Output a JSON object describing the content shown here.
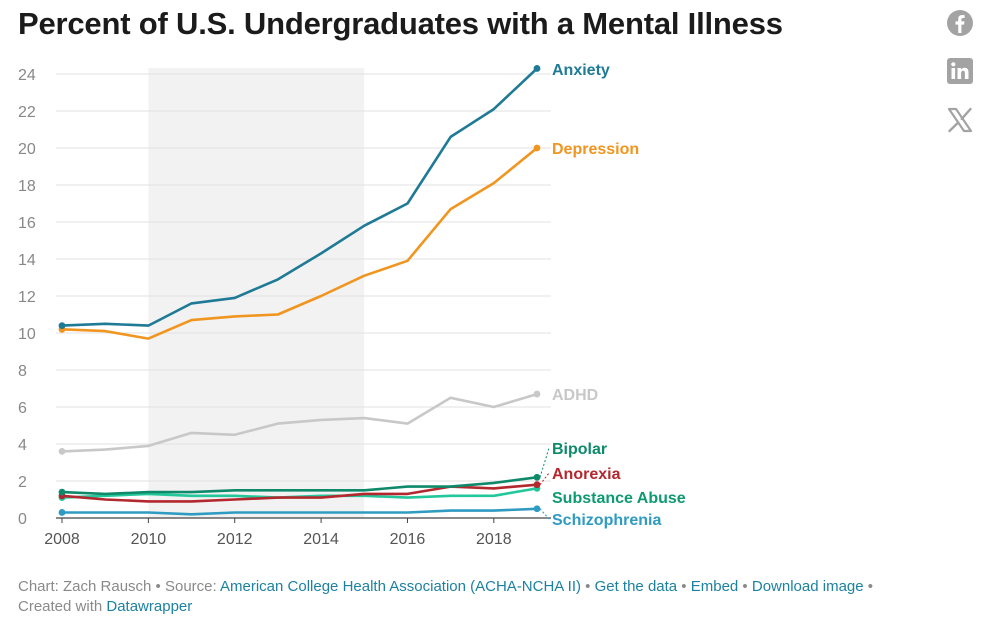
{
  "title": "Percent of U.S. Undergraduates with a Mental Illness",
  "social": {
    "facebook": "facebook-icon",
    "linkedin": "linkedin-icon",
    "x": "x-icon"
  },
  "footer": {
    "chart_prefix": "Chart: Zach Rausch • Source: ",
    "source_link": "American College Health Association (ACHA-NCHA II)",
    "sep1": " • ",
    "get_data": "Get the data",
    "sep2": " • ",
    "embed": "Embed",
    "sep3": "  • ",
    "download": "Download image",
    "sep4": " •",
    "created_prefix": "Created with ",
    "datawrapper": "Datawrapper"
  },
  "chart_data": {
    "type": "line",
    "x": [
      2008,
      2009,
      2010,
      2011,
      2012,
      2013,
      2014,
      2015,
      2016,
      2017,
      2018,
      2019
    ],
    "xticks": [
      "2008",
      "2010",
      "2012",
      "2014",
      "2016",
      "2018"
    ],
    "yticks": [
      "0",
      "2",
      "4",
      "6",
      "8",
      "10",
      "12",
      "14",
      "16",
      "18",
      "20",
      "22",
      "24"
    ],
    "xlim": [
      2008,
      2019
    ],
    "ylim": [
      0,
      24
    ],
    "grid": true,
    "highlight_range": [
      2010,
      2015
    ],
    "series": [
      {
        "name": "Anxiety",
        "color": "#1f7a96",
        "values": [
          10.4,
          10.5,
          10.4,
          11.6,
          11.9,
          12.9,
          14.3,
          15.8,
          17.0,
          20.6,
          22.1,
          24.3
        ]
      },
      {
        "name": "Depression",
        "color": "#f0951f",
        "values": [
          10.2,
          10.1,
          9.7,
          10.7,
          10.9,
          11.0,
          12.0,
          13.1,
          13.9,
          16.7,
          18.1,
          20.0
        ]
      },
      {
        "name": "ADHD",
        "color": "#c8c8c8",
        "values": [
          3.6,
          3.7,
          3.9,
          4.6,
          4.5,
          5.1,
          5.3,
          5.4,
          5.1,
          6.5,
          6.0,
          6.7
        ]
      },
      {
        "name": "Bipolar",
        "color": "#0e8a6b",
        "values": [
          1.4,
          1.3,
          1.4,
          1.4,
          1.5,
          1.5,
          1.5,
          1.5,
          1.7,
          1.7,
          1.9,
          2.2
        ]
      },
      {
        "name": "Anorexia",
        "color": "#b3282e",
        "values": [
          1.2,
          1.0,
          0.9,
          0.9,
          1.0,
          1.1,
          1.1,
          1.3,
          1.3,
          1.7,
          1.6,
          1.8
        ]
      },
      {
        "name": "Substance Abuse",
        "color": "#22c79b",
        "values": [
          1.1,
          1.2,
          1.3,
          1.2,
          1.2,
          1.1,
          1.2,
          1.2,
          1.1,
          1.2,
          1.2,
          1.6
        ]
      },
      {
        "name": "Schizophrenia",
        "color": "#2f9bc1",
        "values": [
          0.3,
          0.3,
          0.3,
          0.2,
          0.3,
          0.3,
          0.3,
          0.3,
          0.3,
          0.4,
          0.4,
          0.5
        ]
      }
    ]
  }
}
